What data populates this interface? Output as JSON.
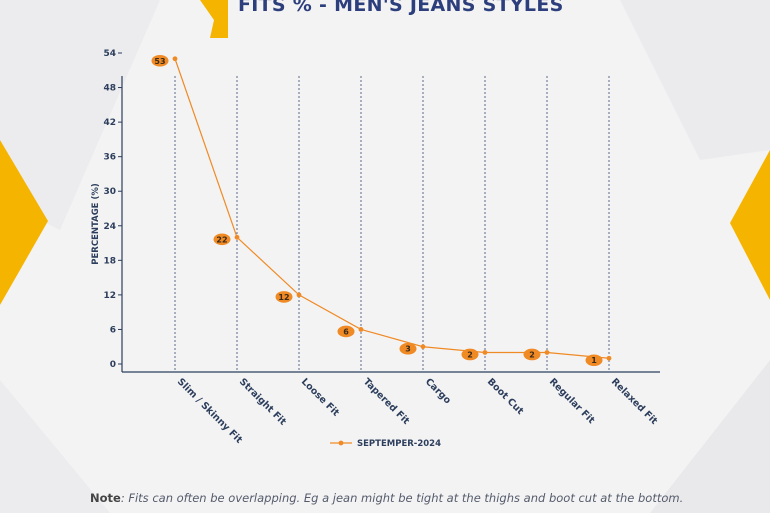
{
  "title": "FITS % - MEN'S JEANS STYLES",
  "note": {
    "label": "Note",
    "text": ": Fits can often be overlapping. Eg a jean might be tight at the thighs and boot cut at the bottom."
  },
  "colors": {
    "accent": "#f5a800",
    "title": "#2c3e7b",
    "series": "#f08a24",
    "axis": "#2c3e5c"
  },
  "chart_data": {
    "type": "line",
    "categories": [
      "Slim / Skinny Fit",
      "Straight Fit",
      "Loose Fit",
      "Tapered Fit",
      "Cargo",
      "Boot Cut",
      "Regular Fit",
      "Relaxed Fit"
    ],
    "series": [
      {
        "name": "SEPTEMPER-2024",
        "values": [
          53,
          22,
          12,
          6,
          3,
          2,
          2,
          1
        ]
      }
    ],
    "ylabel": "PERCENTAGE (%)",
    "xlabel": "",
    "ylim": [
      0,
      54
    ],
    "yticks": [
      0,
      6,
      12,
      18,
      24,
      30,
      36,
      42,
      48,
      54
    ],
    "grid": "vertical-dotted",
    "legend": "bottom-center"
  }
}
